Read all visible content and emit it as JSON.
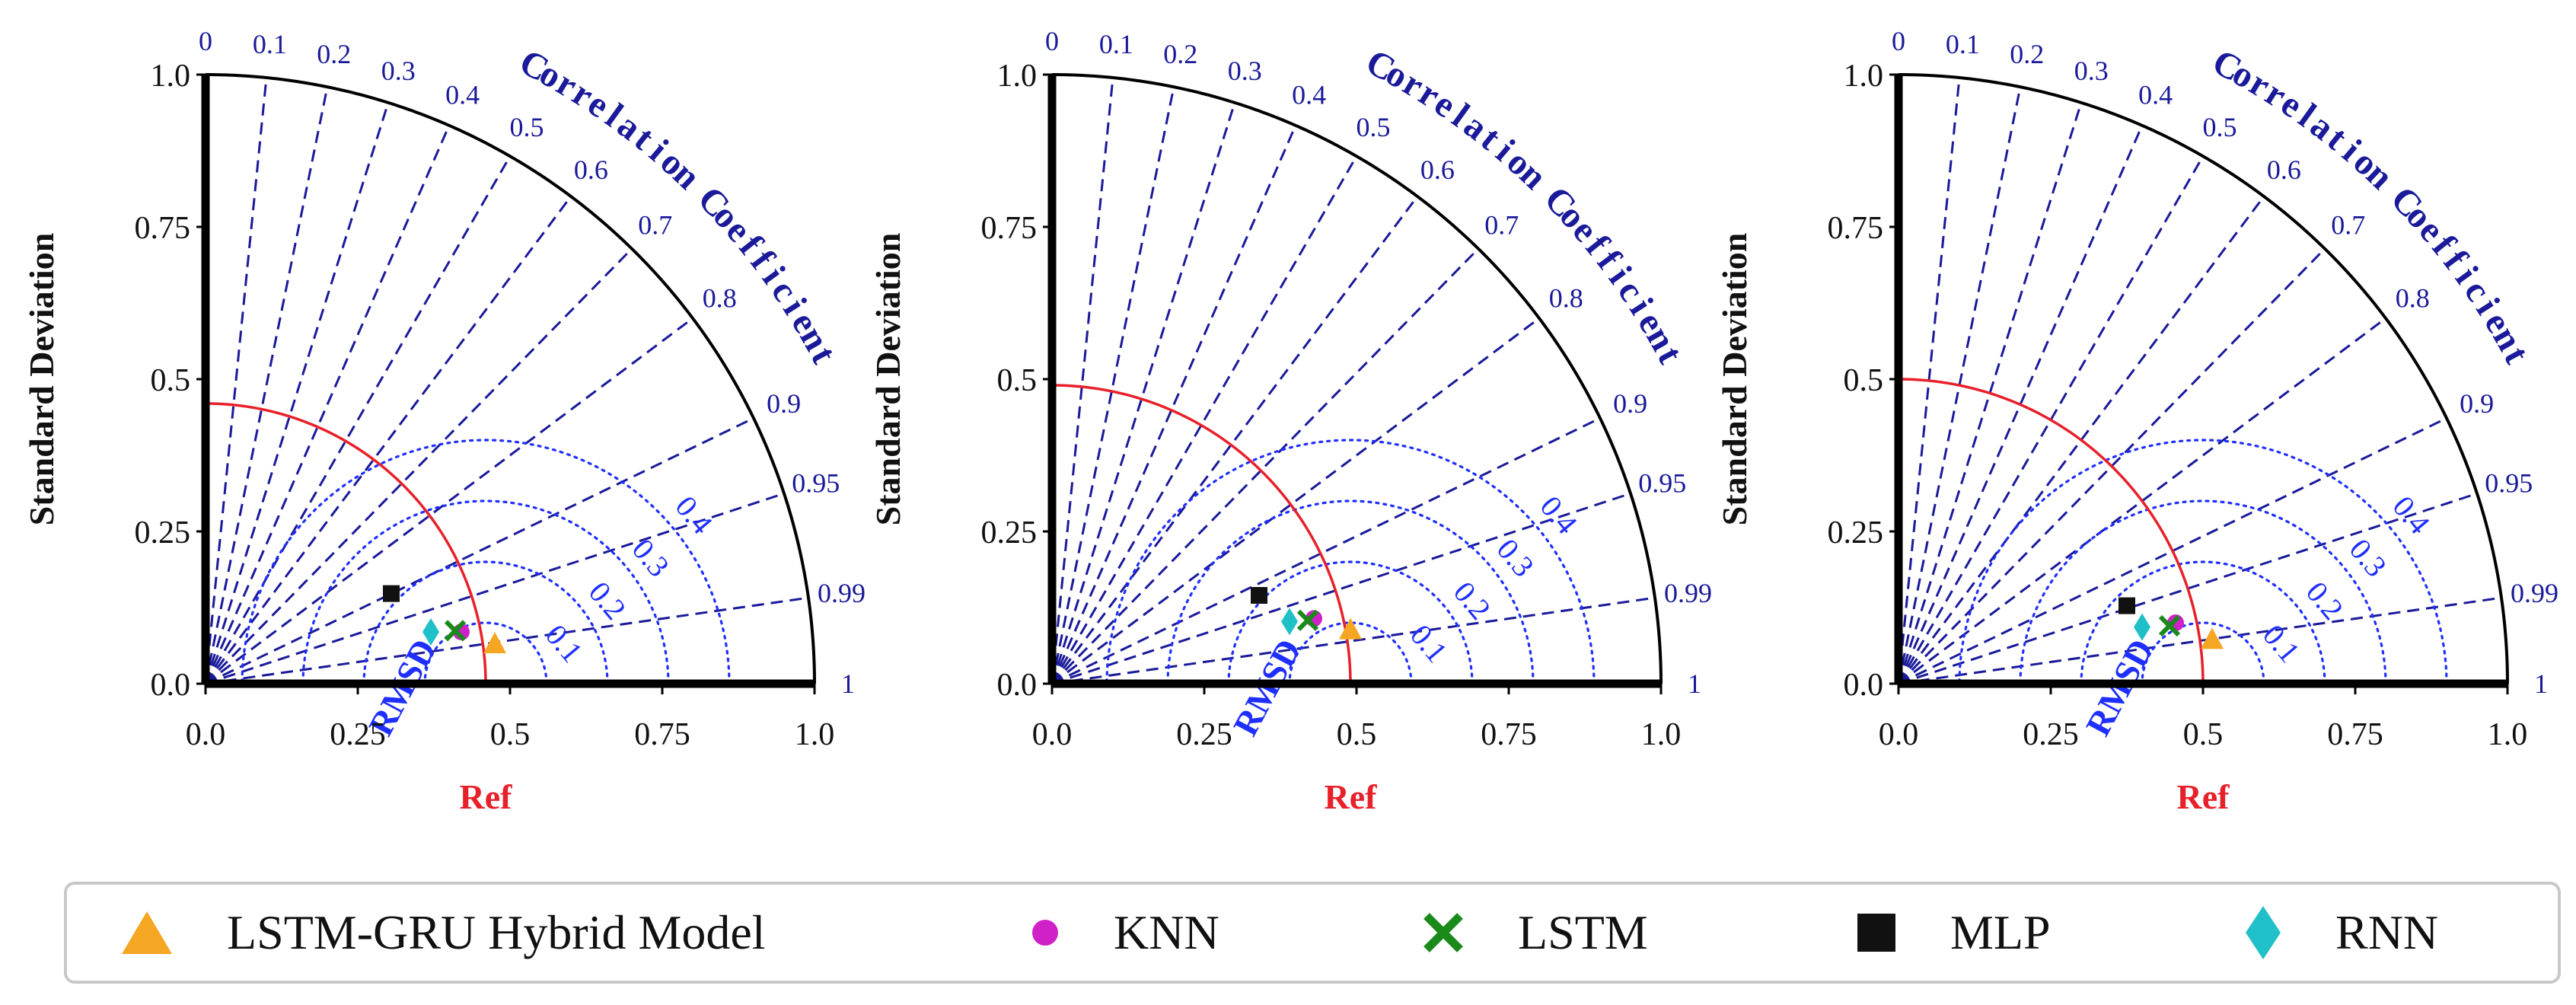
{
  "chart_data": [
    {
      "type": "scatter",
      "subtype": "taylor-diagram",
      "ylabel": "Standard Deviation",
      "xlabel": "Ref",
      "arc_title": "Correlation Coefficient",
      "rmsd_label": "RMSD",
      "std_ticks": [
        "0.0",
        "0.25",
        "0.5",
        "0.75",
        "1.0"
      ],
      "corr_ticks": [
        "0",
        "0.1",
        "0.2",
        "0.3",
        "0.4",
        "0.5",
        "0.6",
        "0.7",
        "0.8",
        "0.9",
        "0.95",
        "0.99",
        "1"
      ],
      "rmsd_ticks": [
        "0.1",
        "0.2",
        "0.3",
        "0.4"
      ],
      "ref_std": 0.46,
      "std_range": [
        0,
        1.0
      ],
      "points": [
        {
          "model": "LSTM-GRU Hybrid Model",
          "x": 0.475,
          "y": 0.065
        },
        {
          "model": "KNN",
          "x": 0.42,
          "y": 0.085
        },
        {
          "model": "LSTM",
          "x": 0.41,
          "y": 0.087
        },
        {
          "model": "MLP",
          "x": 0.305,
          "y": 0.148
        },
        {
          "model": "RNN",
          "x": 0.37,
          "y": 0.085
        }
      ]
    },
    {
      "type": "scatter",
      "subtype": "taylor-diagram",
      "ylabel": "Standard Deviation",
      "xlabel": "Ref",
      "arc_title": "Correlation Coefficient",
      "rmsd_label": "RMSD",
      "std_ticks": [
        "0.0",
        "0.25",
        "0.5",
        "0.75",
        "1.0"
      ],
      "corr_ticks": [
        "0",
        "0.1",
        "0.2",
        "0.3",
        "0.4",
        "0.5",
        "0.6",
        "0.7",
        "0.8",
        "0.9",
        "0.95",
        "0.99",
        "1"
      ],
      "rmsd_ticks": [
        "0.1",
        "0.2",
        "0.3",
        "0.4"
      ],
      "ref_std": 0.49,
      "std_range": [
        0,
        1.0
      ],
      "points": [
        {
          "model": "LSTM-GRU Hybrid Model",
          "x": 0.49,
          "y": 0.088
        },
        {
          "model": "KNN",
          "x": 0.43,
          "y": 0.107
        },
        {
          "model": "LSTM",
          "x": 0.42,
          "y": 0.104
        },
        {
          "model": "MLP",
          "x": 0.34,
          "y": 0.145
        },
        {
          "model": "RNN",
          "x": 0.39,
          "y": 0.102
        }
      ]
    },
    {
      "type": "scatter",
      "subtype": "taylor-diagram",
      "ylabel": "Standard Deviation",
      "xlabel": "Ref",
      "arc_title": "Correlation Coefficient",
      "rmsd_label": "RMSD",
      "std_ticks": [
        "0.0",
        "0.25",
        "0.5",
        "0.75",
        "1.0"
      ],
      "corr_ticks": [
        "0",
        "0.1",
        "0.2",
        "0.3",
        "0.4",
        "0.5",
        "0.6",
        "0.7",
        "0.8",
        "0.9",
        "0.95",
        "0.99",
        "1"
      ],
      "rmsd_ticks": [
        "0.1",
        "0.2",
        "0.3",
        "0.4"
      ],
      "ref_std": 0.5,
      "std_range": [
        0,
        1.0
      ],
      "points": [
        {
          "model": "LSTM-GRU Hybrid Model",
          "x": 0.515,
          "y": 0.072
        },
        {
          "model": "KNN",
          "x": 0.455,
          "y": 0.1
        },
        {
          "model": "LSTM",
          "x": 0.445,
          "y": 0.095
        },
        {
          "model": "MLP",
          "x": 0.375,
          "y": 0.128
        },
        {
          "model": "RNN",
          "x": 0.4,
          "y": 0.093
        }
      ]
    }
  ],
  "legend": [
    {
      "label": "LSTM-GRU Hybrid Model",
      "marker": "triangle",
      "color": "#f5a623"
    },
    {
      "label": "KNN",
      "marker": "circle",
      "color": "#d020c8"
    },
    {
      "label": "LSTM",
      "marker": "x",
      "color": "#1a8a1a"
    },
    {
      "label": "MLP",
      "marker": "square",
      "color": "#111111"
    },
    {
      "label": "RNN",
      "marker": "diamond",
      "color": "#20c0c8"
    }
  ],
  "colors": {
    "corr_lines": "#1a1a9a",
    "rmsd_arcs": "#1f2fff",
    "ref_arc": "#e8202a",
    "axis": "#000000"
  }
}
